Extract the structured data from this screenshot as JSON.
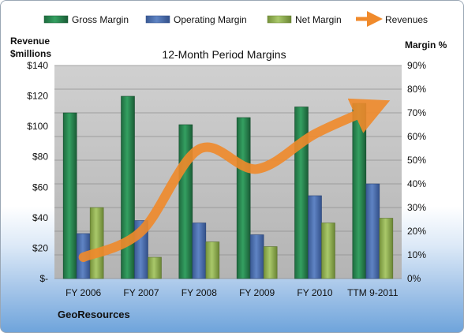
{
  "chart_data": {
    "type": "bar",
    "title": "12-Month Period Margins",
    "company": "GeoResources",
    "ylabel_left": [
      "Revenue",
      "$millions"
    ],
    "ylabel_right": "Margin %",
    "categories": [
      "FY 2006",
      "FY 2007",
      "FY 2008",
      "FY 2009",
      "FY 2010",
      "TTM 9-2011"
    ],
    "ylim_left": [
      0,
      140
    ],
    "ylim_right": [
      0,
      90
    ],
    "left_ticks": [
      "$-",
      "$20",
      "$40",
      "$60",
      "$80",
      "$100",
      "$120",
      "$140"
    ],
    "right_ticks": [
      "0%",
      "10%",
      "20%",
      "30%",
      "40%",
      "50%",
      "60%",
      "70%",
      "80%",
      "90%"
    ],
    "series": [
      {
        "name": "Gross Margin",
        "axis": "right",
        "color": "#2e8b57",
        "values": [
          70,
          77,
          65,
          68,
          72.5,
          74
        ]
      },
      {
        "name": "Operating Margin",
        "axis": "right",
        "color": "#4f72b0",
        "values": [
          19,
          24.5,
          23.5,
          18.5,
          35,
          40
        ]
      },
      {
        "name": "Net Margin",
        "axis": "right",
        "color": "#9bbb59",
        "values": [
          30,
          9,
          15.5,
          13.5,
          23.5,
          25.5
        ]
      },
      {
        "name": "Revenues",
        "axis": "left",
        "type": "line",
        "color": "#f08a2b",
        "values": [
          14,
          31,
          85,
          72,
          95,
          112
        ]
      }
    ],
    "grid": true,
    "legend": "top"
  }
}
